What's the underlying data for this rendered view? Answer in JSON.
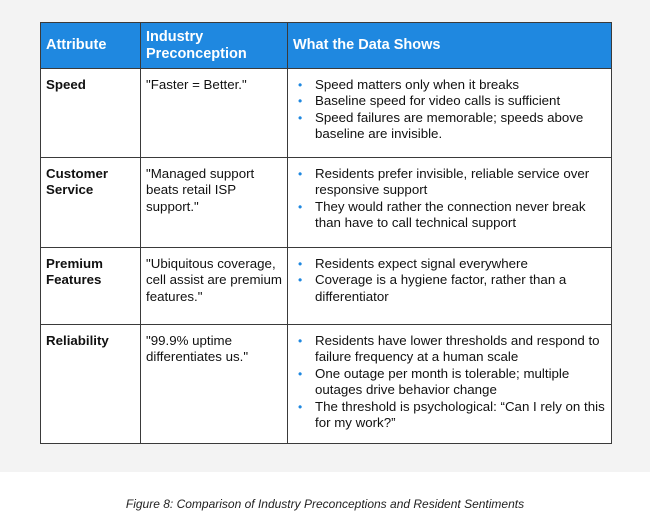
{
  "table": {
    "headers": [
      "Attribute",
      "Industry Preconception",
      "What the Data Shows"
    ],
    "rows": [
      {
        "attribute": "Speed",
        "preconception": "\"Faster = Better.\"",
        "findings": [
          "Speed matters only when it breaks",
          "Baseline speed for video calls is sufficient",
          "Speed failures are memorable; speeds above baseline are invisible."
        ]
      },
      {
        "attribute": "Customer Service",
        "preconception": "\"Managed support beats retail ISP support.\"",
        "findings": [
          "Residents prefer invisible, reliable service over responsive support",
          "They would rather the connection never break than have to call technical support"
        ]
      },
      {
        "attribute": "Premium Features",
        "preconception": "\"Ubiquitous coverage, cell assist are premium features.\"",
        "findings": [
          "Residents expect signal everywhere",
          "Coverage is a hygiene factor, rather than a differentiator"
        ]
      },
      {
        "attribute": "Reliability",
        "preconception": "\"99.9% uptime differentiates us.\"",
        "findings": [
          "Residents have lower thresholds and respond to failure frequency at a human scale",
          "One outage per month is tolerable; multiple outages drive behavior change",
          "The threshold is psychological: “Can I rely on this for my work?”"
        ]
      }
    ]
  },
  "caption": "Figure 8: Comparison of Industry Preconceptions and Resident Sentiments",
  "colors": {
    "header_bg": "#1f88e0",
    "bullet": "#1f88e0",
    "panel_bg": "#f3f3f3"
  }
}
